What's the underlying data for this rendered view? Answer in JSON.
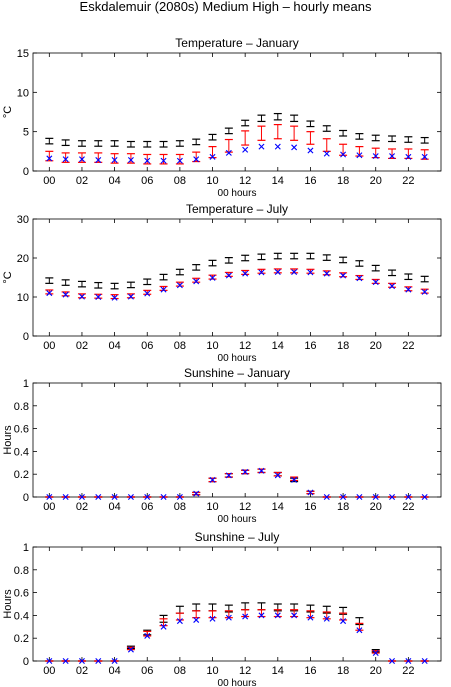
{
  "figure_title": "Eskdalemuir (2080s) Medium High – hourly means",
  "colors": {
    "black_series": "#000000",
    "red_series": "#ff0000",
    "blue_series": "#0000ff",
    "axes": "#000000"
  },
  "chart_data": [
    {
      "type": "scatter",
      "title": "Temperature – January",
      "xlabel": "00 hours",
      "ylabel": "°C",
      "xlim": [
        -1,
        24
      ],
      "ylim": [
        0,
        15
      ],
      "yticks": [
        0,
        5,
        10,
        15
      ],
      "xticks": [
        0,
        2,
        4,
        6,
        8,
        10,
        12,
        14,
        16,
        18,
        20,
        22
      ],
      "xticklabels": [
        "00",
        "02",
        "04",
        "06",
        "08",
        "10",
        "12",
        "14",
        "16",
        "18",
        "20",
        "22"
      ],
      "grid": false,
      "x": [
        0,
        1,
        2,
        3,
        4,
        5,
        6,
        7,
        8,
        9,
        10,
        11,
        12,
        13,
        14,
        15,
        16,
        17,
        18,
        19,
        20,
        21,
        22,
        23
      ],
      "series": [
        {
          "marker": "errorbar",
          "color": "#000000",
          "values": [
            3.8,
            3.6,
            3.5,
            3.5,
            3.5,
            3.4,
            3.4,
            3.4,
            3.5,
            3.7,
            4.3,
            5.1,
            6.1,
            6.7,
            6.9,
            6.7,
            6.0,
            5.4,
            4.8,
            4.4,
            4.2,
            4.1,
            4.0,
            3.9
          ],
          "err": [
            0.35,
            0.35,
            0.35,
            0.35,
            0.35,
            0.35,
            0.35,
            0.35,
            0.35,
            0.35,
            0.35,
            0.35,
            0.35,
            0.4,
            0.4,
            0.4,
            0.35,
            0.35,
            0.35,
            0.35,
            0.35,
            0.35,
            0.35,
            0.35
          ]
        },
        {
          "marker": "errorbar",
          "color": "#ff0000",
          "values": [
            1.9,
            1.7,
            1.7,
            1.7,
            1.6,
            1.6,
            1.5,
            1.5,
            1.5,
            1.8,
            2.4,
            3.2,
            4.2,
            4.8,
            5.0,
            4.8,
            4.2,
            3.3,
            2.7,
            2.5,
            2.3,
            2.2,
            2.2,
            2.1
          ],
          "err": [
            0.6,
            0.6,
            0.6,
            0.6,
            0.6,
            0.6,
            0.6,
            0.6,
            0.6,
            0.6,
            0.7,
            0.8,
            0.9,
            0.9,
            0.9,
            0.9,
            0.8,
            0.8,
            0.7,
            0.6,
            0.6,
            0.6,
            0.6,
            0.6
          ]
        },
        {
          "marker": "x",
          "color": "#0000ff",
          "values": [
            1.6,
            1.5,
            1.5,
            1.4,
            1.4,
            1.4,
            1.3,
            1.3,
            1.3,
            1.5,
            1.8,
            2.3,
            2.7,
            3.1,
            3.1,
            3.0,
            2.6,
            2.2,
            2.1,
            2.0,
            1.9,
            1.9,
            1.8,
            1.8
          ]
        }
      ]
    },
    {
      "type": "scatter",
      "title": "Temperature – July",
      "xlabel": "00 hours",
      "ylabel": "°C",
      "xlim": [
        -1,
        24
      ],
      "ylim": [
        0,
        30
      ],
      "yticks": [
        0,
        10,
        20,
        30
      ],
      "xticks": [
        0,
        2,
        4,
        6,
        8,
        10,
        12,
        14,
        16,
        18,
        20,
        22
      ],
      "xticklabels": [
        "00",
        "02",
        "04",
        "06",
        "08",
        "10",
        "12",
        "14",
        "16",
        "18",
        "20",
        "22"
      ],
      "grid": false,
      "x": [
        0,
        1,
        2,
        3,
        4,
        5,
        6,
        7,
        8,
        9,
        10,
        11,
        12,
        13,
        14,
        15,
        16,
        17,
        18,
        19,
        20,
        21,
        22,
        23
      ],
      "series": [
        {
          "marker": "errorbar",
          "color": "#000000",
          "values": [
            14.2,
            13.7,
            13.3,
            13.0,
            12.8,
            13.1,
            13.9,
            15.1,
            16.4,
            17.6,
            18.7,
            19.4,
            20.0,
            20.3,
            20.5,
            20.5,
            20.5,
            20.1,
            19.5,
            18.6,
            17.4,
            16.2,
            15.2,
            14.6
          ],
          "err": [
            0.7,
            0.7,
            0.7,
            0.7,
            0.7,
            0.7,
            0.7,
            0.7,
            0.7,
            0.7,
            0.7,
            0.7,
            0.7,
            0.7,
            0.7,
            0.7,
            0.7,
            0.7,
            0.7,
            0.7,
            0.7,
            0.7,
            0.7,
            0.7
          ]
        },
        {
          "marker": "errorbar",
          "color": "#ff0000",
          "values": [
            11.3,
            10.8,
            10.3,
            10.2,
            10.1,
            10.3,
            11.2,
            12.2,
            13.3,
            14.3,
            15.1,
            15.8,
            16.3,
            16.6,
            16.7,
            16.7,
            16.6,
            16.2,
            15.7,
            15.0,
            14.0,
            13.0,
            12.1,
            11.5
          ],
          "err": [
            0.5,
            0.5,
            0.5,
            0.5,
            0.5,
            0.5,
            0.5,
            0.5,
            0.5,
            0.5,
            0.5,
            0.5,
            0.5,
            0.5,
            0.5,
            0.5,
            0.5,
            0.5,
            0.5,
            0.5,
            0.5,
            0.5,
            0.5,
            0.5
          ]
        },
        {
          "marker": "x",
          "color": "#0000ff",
          "values": [
            11.0,
            10.6,
            10.1,
            10.0,
            9.8,
            10.1,
            10.9,
            11.9,
            13.0,
            14.0,
            14.9,
            15.5,
            16.0,
            16.3,
            16.4,
            16.4,
            16.3,
            16.0,
            15.5,
            14.8,
            13.8,
            12.8,
            11.9,
            11.3
          ]
        }
      ]
    },
    {
      "type": "scatter",
      "title": "Sunshine – January",
      "xlabel": "00 hours",
      "ylabel": "Hours",
      "xlim": [
        -1,
        24
      ],
      "ylim": [
        0,
        1
      ],
      "yticks": [
        0,
        0.2,
        0.4,
        0.6,
        0.8,
        1
      ],
      "xticks": [
        0,
        2,
        4,
        6,
        8,
        10,
        12,
        14,
        16,
        18,
        20,
        22
      ],
      "xticklabels": [
        "00",
        "02",
        "04",
        "06",
        "08",
        "10",
        "12",
        "14",
        "16",
        "18",
        "20",
        "22"
      ],
      "grid": false,
      "x": [
        0,
        1,
        2,
        3,
        4,
        5,
        6,
        7,
        8,
        9,
        10,
        11,
        12,
        13,
        14,
        15,
        16,
        17,
        18,
        19,
        20,
        21,
        22,
        23
      ],
      "series": [
        {
          "marker": "errorbar",
          "color": "#000000",
          "values": [
            0,
            0,
            0,
            0,
            0,
            0,
            0,
            0,
            0,
            0.03,
            0.15,
            0.19,
            0.22,
            0.23,
            0.2,
            0.15,
            0.04,
            0,
            0,
            0,
            0,
            0,
            0,
            0
          ],
          "err": [
            0,
            0,
            0,
            0,
            0,
            0,
            0,
            0,
            0,
            0.01,
            0.015,
            0.015,
            0.015,
            0.015,
            0.015,
            0.015,
            0.01,
            0,
            0,
            0,
            0,
            0,
            0,
            0
          ]
        },
        {
          "marker": "errorbar",
          "color": "#ff0000",
          "values": [
            0,
            0,
            0,
            0,
            0,
            0,
            0,
            0,
            0,
            0.03,
            0.15,
            0.19,
            0.22,
            0.23,
            0.2,
            0.16,
            0.04,
            0,
            0,
            0,
            0,
            0,
            0,
            0
          ],
          "err": [
            0,
            0,
            0,
            0,
            0,
            0,
            0,
            0,
            0,
            0.01,
            0.015,
            0.015,
            0.015,
            0.015,
            0.015,
            0.015,
            0.01,
            0,
            0,
            0,
            0,
            0,
            0,
            0
          ]
        },
        {
          "marker": "x",
          "color": "#0000ff",
          "values": [
            0,
            0,
            0,
            0,
            0,
            0,
            0,
            0,
            0,
            0.03,
            0.15,
            0.19,
            0.22,
            0.23,
            0.19,
            0.15,
            0.04,
            0,
            0,
            0,
            0,
            0,
            0,
            0
          ]
        }
      ]
    },
    {
      "type": "scatter",
      "title": "Sunshine – July",
      "xlabel": "00 hours",
      "ylabel": "Hours",
      "xlim": [
        -1,
        24
      ],
      "ylim": [
        0,
        1
      ],
      "yticks": [
        0,
        0.2,
        0.4,
        0.6,
        0.8,
        1
      ],
      "xticks": [
        0,
        2,
        4,
        6,
        8,
        10,
        12,
        14,
        16,
        18,
        20,
        22
      ],
      "xticklabels": [
        "00",
        "02",
        "04",
        "06",
        "08",
        "10",
        "12",
        "14",
        "16",
        "18",
        "20",
        "22"
      ],
      "grid": false,
      "x": [
        0,
        1,
        2,
        3,
        4,
        5,
        6,
        7,
        8,
        9,
        10,
        11,
        12,
        13,
        14,
        15,
        16,
        17,
        18,
        19,
        20,
        21,
        22,
        23
      ],
      "series": [
        {
          "marker": "errorbar",
          "color": "#000000",
          "values": [
            0,
            0,
            0,
            0,
            0,
            0.12,
            0.25,
            0.37,
            0.45,
            0.47,
            0.47,
            0.46,
            0.48,
            0.48,
            0.47,
            0.47,
            0.46,
            0.45,
            0.44,
            0.35,
            0.09,
            0,
            0,
            0
          ],
          "err": [
            0,
            0,
            0,
            0,
            0,
            0.01,
            0.02,
            0.03,
            0.03,
            0.03,
            0.03,
            0.03,
            0.03,
            0.03,
            0.03,
            0.03,
            0.03,
            0.03,
            0.03,
            0.03,
            0.01,
            0,
            0,
            0
          ]
        },
        {
          "marker": "errorbar",
          "color": "#ff0000",
          "values": [
            0,
            0,
            0,
            0,
            0,
            0.11,
            0.24,
            0.34,
            0.39,
            0.41,
            0.41,
            0.41,
            0.42,
            0.42,
            0.42,
            0.42,
            0.41,
            0.4,
            0.39,
            0.3,
            0.08,
            0,
            0,
            0
          ],
          "err": [
            0,
            0,
            0,
            0,
            0,
            0.01,
            0.02,
            0.03,
            0.03,
            0.03,
            0.03,
            0.03,
            0.03,
            0.03,
            0.03,
            0.03,
            0.03,
            0.03,
            0.03,
            0.03,
            0.01,
            0,
            0,
            0
          ]
        },
        {
          "marker": "x",
          "color": "#0000ff",
          "values": [
            0,
            0,
            0,
            0,
            0,
            0.1,
            0.22,
            0.3,
            0.35,
            0.36,
            0.37,
            0.38,
            0.39,
            0.4,
            0.4,
            0.4,
            0.38,
            0.37,
            0.35,
            0.27,
            0.07,
            0,
            0,
            0
          ]
        }
      ]
    }
  ]
}
